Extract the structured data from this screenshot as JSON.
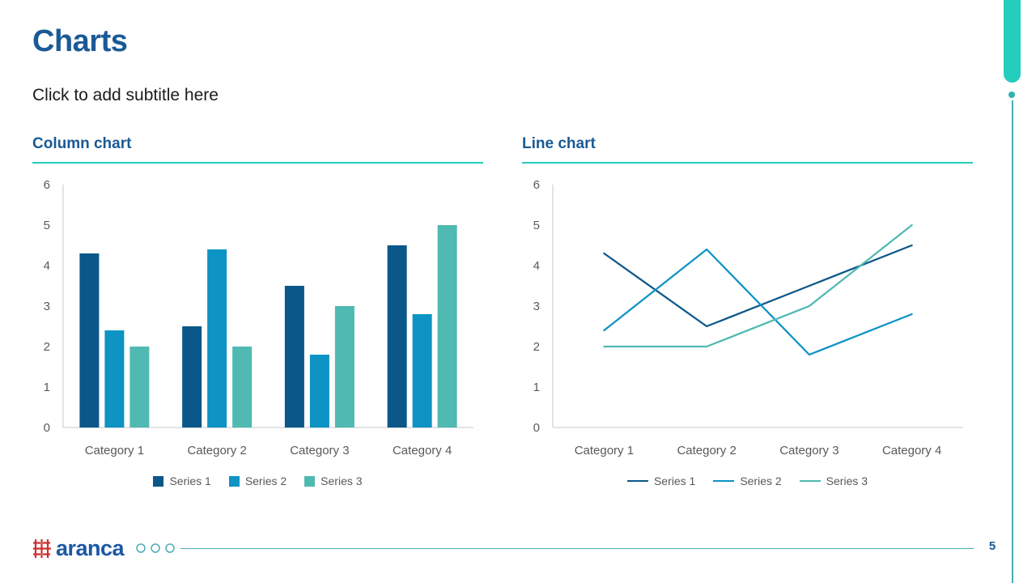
{
  "slide": {
    "title": "Charts",
    "subtitle": "Click to add subtitle here",
    "page_number": "5"
  },
  "footer": {
    "brand": "aranca"
  },
  "colors": {
    "title": "#1a5a96",
    "accent": "#24cdbc",
    "thin": "#4aabb9",
    "dot": "#2fb3ae",
    "axis_line": "#c8c8c8",
    "tick_label": "#595959",
    "brand_blue": "#1d57a5",
    "brand_red": "#cf2e31"
  },
  "chart_data": [
    {
      "type": "bar",
      "title": "Column chart",
      "categories": [
        "Category 1",
        "Category 2",
        "Category 3",
        "Category 4"
      ],
      "series": [
        {
          "name": "Series 1",
          "color": "#0b5789",
          "values": [
            4.3,
            2.5,
            3.5,
            4.5
          ]
        },
        {
          "name": "Series 2",
          "color": "#0d93c4",
          "values": [
            2.4,
            4.4,
            1.8,
            2.8
          ]
        },
        {
          "name": "Series 3",
          "color": "#4fb9b2",
          "values": [
            2,
            2,
            3,
            5
          ]
        }
      ],
      "ylim": [
        0,
        6
      ],
      "ytick_step": 1,
      "grid": false,
      "legend_position": "bottom"
    },
    {
      "type": "line",
      "title": "Line chart",
      "categories": [
        "Category 1",
        "Category 2",
        "Category 3",
        "Category 4"
      ],
      "series": [
        {
          "name": "Series 1",
          "color": "#0b5789",
          "values": [
            4.3,
            2.5,
            3.5,
            4.5
          ]
        },
        {
          "name": "Series 2",
          "color": "#0d93c4",
          "values": [
            2.4,
            4.4,
            1.8,
            2.8
          ]
        },
        {
          "name": "Series 3",
          "color": "#4fb9b2",
          "values": [
            2,
            2,
            3,
            5
          ]
        }
      ],
      "ylim": [
        0,
        6
      ],
      "ytick_step": 1,
      "grid": false,
      "legend_position": "bottom"
    }
  ]
}
